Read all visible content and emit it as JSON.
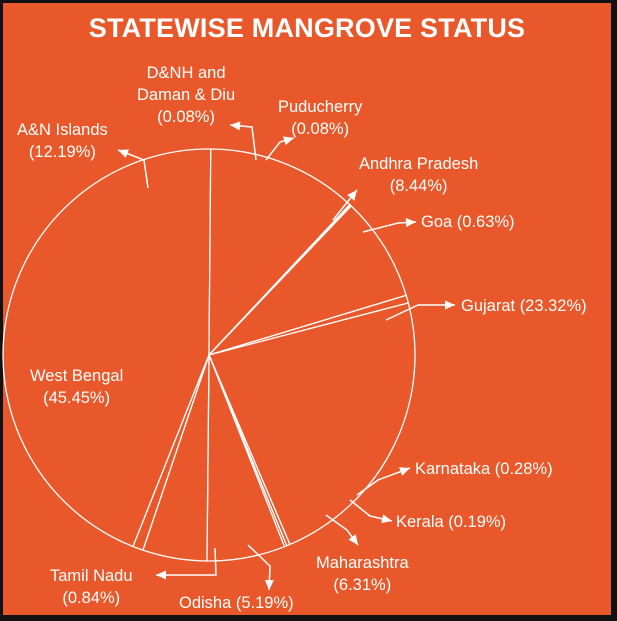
{
  "title": "STATEWISE MANGROVE STATUS",
  "colors": {
    "background": "#E8582A",
    "stroke": "#FFFFFF",
    "frame": "#111111"
  },
  "chart_data": {
    "type": "pie",
    "title": "STATEWISE MANGROVE STATUS",
    "slices": [
      {
        "name": "West Bengal",
        "value": 45.45,
        "label_line1": "West Bengal",
        "label_line2": "(45.45%)"
      },
      {
        "name": "A&N Islands",
        "value": 12.19,
        "label_line1": "A&N Islands",
        "label_line2": "(12.19%)"
      },
      {
        "name": "D&NH and Daman & Diu",
        "value": 0.08,
        "label_line1": "D&NH and",
        "label_line2": "Daman & Diu",
        "label_line3": "(0.08%)"
      },
      {
        "name": "Puducherry",
        "value": 0.08,
        "label_line1": "Puducherry",
        "label_line2": "(0.08%)"
      },
      {
        "name": "Andhra Pradesh",
        "value": 8.44,
        "label_line1": "Andhra Pradesh",
        "label_line2": "(8.44%)"
      },
      {
        "name": "Goa",
        "value": 0.63,
        "label_line1": "Goa (0.63%)"
      },
      {
        "name": "Gujarat",
        "value": 23.32,
        "label_line1": "Gujarat (23.32%)"
      },
      {
        "name": "Karnataka",
        "value": 0.28,
        "label_line1": "Karnataka (0.28%)"
      },
      {
        "name": "Kerala",
        "value": 0.19,
        "label_line1": "Kerala (0.19%)"
      },
      {
        "name": "Maharashtra",
        "value": 6.31,
        "label_line1": "Maharashtra",
        "label_line2": "(6.31%)"
      },
      {
        "name": "Odisha",
        "value": 5.19,
        "label_line1": "Odisha (5.19%)"
      },
      {
        "name": "Tamil Nadu",
        "value": 0.84,
        "label_line1": "Tamil Nadu",
        "label_line2": "(0.84%)"
      }
    ]
  }
}
